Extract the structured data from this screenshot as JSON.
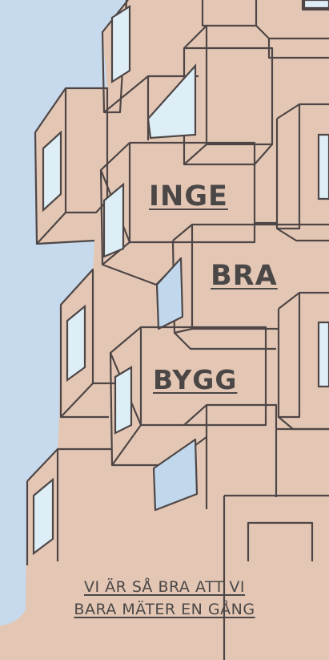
{
  "poster": {
    "headline_words": [
      "INGE",
      "BRA",
      "BYGG"
    ],
    "tagline_lines": [
      "VI ÄR SÅ BRA ATT VI",
      "BARA MÄTER EN GÅNG"
    ]
  },
  "colors": {
    "sky": "#c7d9ec",
    "building": "#e3c7b4",
    "outline": "#4e4646",
    "window_glass": "#ddeef7",
    "panel_blue": "#c0d7ec",
    "text": "#4b4747"
  }
}
